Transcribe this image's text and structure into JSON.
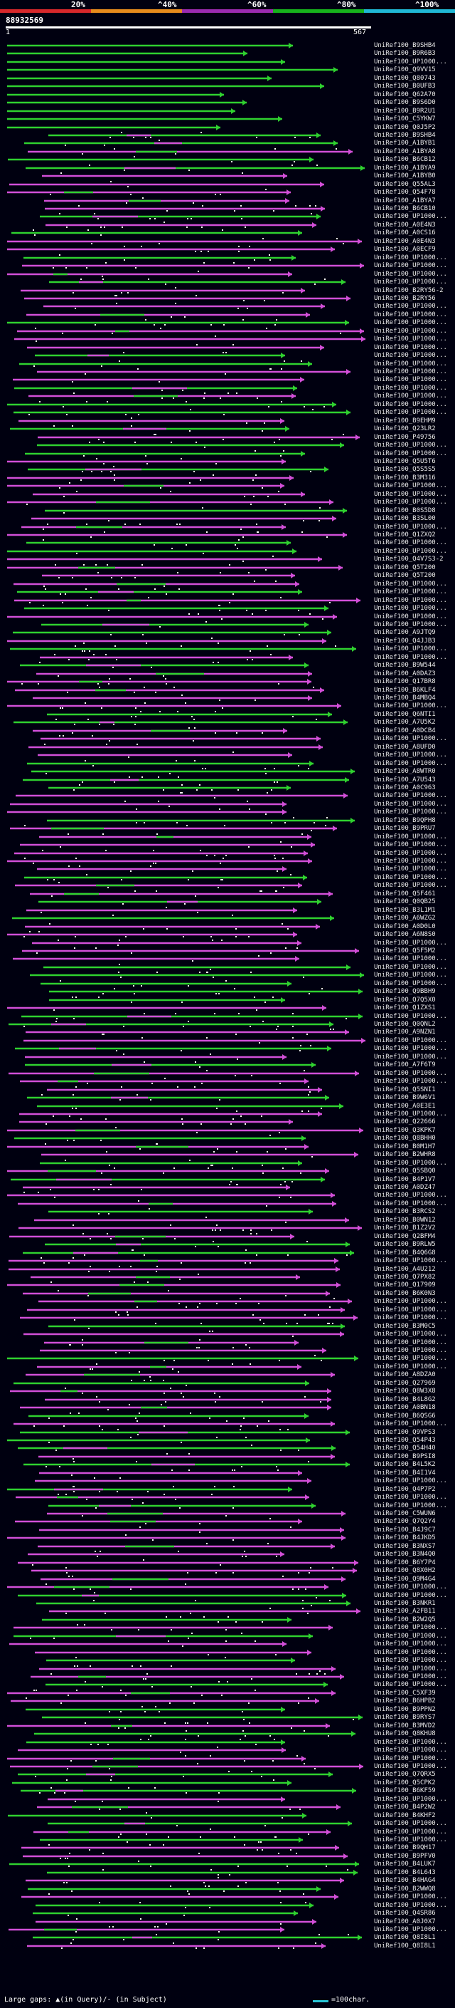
{
  "legend": {
    "labels": [
      "20%",
      "^40%",
      "^60%",
      "^80%",
      "^100%"
    ],
    "colors": [
      "#d8282b",
      "#e88c1c",
      "#9b2bb0",
      "#17b31c",
      "#20b8d6"
    ]
  },
  "query": {
    "id": "88932569",
    "start": "1",
    "end": "567"
  },
  "footer": {
    "gap_text": "Large gaps: ▲(in Query)/- (in Subject)",
    "scale_text": "=100char."
  },
  "colors": {
    "identity_high": "#2fd12f",
    "identity_mid": "#d24fd8",
    "gap": "#c8c8c8",
    "scale": "#29c5d6"
  },
  "hits": [
    "UniRef100_B9SHB4",
    "UniRef100_B9R6B3",
    "UniRef100_UP1000...",
    "UniRef100_Q9VV15",
    "UniRef100_Q80743",
    "UniRef100_B0UFB3",
    "UniRef100_Q62A70",
    "UniRef100_B9S6D0",
    "UniRef100_B9R2U1",
    "UniRef100_C5YKW7",
    "UniRef100_Q0J5P2",
    "UniRef100_B9SHB4",
    "UniRef100_A1BYB1",
    "UniRef100_A1BYA8",
    "UniRef100_B6CB12",
    "UniRef100_A1BYA9",
    "UniRef100_A1BYB0",
    "UniRef100_Q55AL3",
    "UniRef100_Q54F78",
    "UniRef100_A1BYA7",
    "UniRef100_B6CB10",
    "UniRef100_UP1000...",
    "UniRef100_A0E4N3",
    "UniRef100_A0CS16",
    "UniRef100_A0E4N3",
    "UniRef100_A0ECF9",
    "UniRef100_UP1000...",
    "UniRef100_UP1000...",
    "UniRef100_UP1000...",
    "UniRef100_UP1000...",
    "UniRef100_B2RY56-2",
    "UniRef100_B2RY56",
    "UniRef100_UP1000...",
    "UniRef100_UP1000...",
    "UniRef100_UP1000...",
    "UniRef100_UP1000...",
    "UniRef100_UP1000...",
    "UniRef100_UP1000...",
    "UniRef100_UP1000...",
    "UniRef100_UP1000...",
    "UniRef100_UP1000...",
    "UniRef100_UP1000...",
    "UniRef100_UP1000...",
    "UniRef100_UP1000...",
    "UniRef100_UP1000...",
    "UniRef100_UP1000...",
    "UniRef100_B9EHM9",
    "UniRef100_Q23LR2",
    "UniRef100_P49756",
    "UniRef100_UP1000...",
    "UniRef100_UP1000...",
    "UniRef100_Q5U5T6",
    "UniRef100_Q5S5S5",
    "UniRef100_B3M316",
    "UniRef100_UP1000...",
    "UniRef100_UP1000...",
    "UniRef100_UP1000...",
    "UniRef100_B0S5D8",
    "UniRef100_B3SL00",
    "UniRef100_UP1000...",
    "UniRef100_Q1ZXQ2",
    "UniRef100_UP1000...",
    "UniRef100_UP1000...",
    "UniRef100_Q4V7S3-2",
    "UniRef100_Q5T200",
    "UniRef100_Q5T200",
    "UniRef100_UP1000...",
    "UniRef100_UP1000...",
    "UniRef100_UP1000...",
    "UniRef100_UP1000...",
    "UniRef100_UP1000...",
    "UniRef100_UP1000...",
    "UniRef100_A9JTQ9",
    "UniRef100_Q4JJB3",
    "UniRef100_UP1000...",
    "UniRef100_UP1000...",
    "UniRef100_B9W544",
    "UniRef100_A0DAZ3",
    "UniRef100_Q17BR8",
    "UniRef100_B6KLF4",
    "UniRef100_B4MBQ4",
    "UniRef100_UP1000...",
    "UniRef100_Q6NTI1",
    "UniRef100_A7U5K2",
    "UniRef100_A0DCB4",
    "UniRef100_UP1000...",
    "UniRef100_A8UFD0",
    "UniRef100_UP1000...",
    "UniRef100_UP1000...",
    "UniRef100_A8WTR0",
    "UniRef100_A7U543",
    "UniRef100_A0C963",
    "UniRef100_UP1000...",
    "UniRef100_UP1000...",
    "UniRef100_UP1000...",
    "UniRef100_B9QPH8",
    "UniRef100_B9PRU7",
    "UniRef100_UP1000...",
    "UniRef100_UP1000...",
    "UniRef100_UP1000...",
    "UniRef100_UP1000...",
    "UniRef100_UP1000...",
    "UniRef100_UP1000...",
    "UniRef100_UP1000...",
    "UniRef100_Q5F461",
    "UniRef100_Q0QB25",
    "UniRef100_B3L1M1",
    "UniRef100_A6WZG2",
    "UniRef100_A0D0L0",
    "UniRef100_A6N8S0",
    "UniRef100_UP1000...",
    "UniRef100_Q5F5M2",
    "UniRef100_UP1000...",
    "UniRef100_UP1000...",
    "UniRef100_UP1000...",
    "UniRef100_UP1000...",
    "UniRef100_Q9BBH9",
    "UniRef100_Q7Q5X0",
    "UniRef100_Q1ZXS1",
    "UniRef100_UP1000...",
    "UniRef100_Q0QNL2",
    "UniRef100_A9NZN1",
    "UniRef100_UP1000...",
    "UniRef100_UP1000...",
    "UniRef100_UP1000...",
    "UniRef100_A7F6T9",
    "UniRef100_UP1000...",
    "UniRef100_UP1000...",
    "UniRef100_Q5SNI1",
    "UniRef100_B9W6V1",
    "UniRef100_A0E3E1",
    "UniRef100_UP1000...",
    "UniRef100_Q22666",
    "UniRef100_Q3KPK7",
    "UniRef100_Q8BHH0",
    "UniRef100_B0M1H7",
    "UniRef100_B2WHR8",
    "UniRef100_UP1000...",
    "UniRef100_Q5SBQ0",
    "UniRef100_B4P1V7",
    "UniRef100_A0DZ47",
    "UniRef100_UP1000...",
    "UniRef100_UP1000...",
    "UniRef100_B3RCS2",
    "UniRef100_B0WN12",
    "UniRef100_B1Z2V2",
    "UniRef100_Q2BFM4",
    "UniRef100_B9RLW5",
    "UniRef100_B4Q6G8",
    "UniRef100_UP1000...",
    "UniRef100_A4U212",
    "UniRef100_Q7PX82",
    "UniRef100_Q17909",
    "UniRef100_B6K0N3",
    "UniRef100_UP1000...",
    "UniRef100_UP1000...",
    "UniRef100_UP1000...",
    "UniRef100_B3M0C5",
    "UniRef100_UP1000...",
    "UniRef100_UP1000...",
    "UniRef100_UP1000...",
    "UniRef100_UP1000...",
    "UniRef100_UP1000...",
    "UniRef100_A8DZA0",
    "UniRef100_Q27969",
    "UniRef100_Q8W3X8",
    "UniRef100_B4L8G2",
    "UniRef100_A0BN18",
    "UniRef100_B6QSG6",
    "UniRef100_UP1000...",
    "UniRef100_Q9VPS3",
    "UniRef100_Q54P43",
    "UniRef100_Q54H40",
    "UniRef100_B9PSI8",
    "UniRef100_B4L5K2",
    "UniRef100_B4I1V4",
    "UniRef100_UP1000...",
    "UniRef100_Q4P7P2",
    "UniRef100_UP1000...",
    "UniRef100_UP1000...",
    "UniRef100_C5WUN6",
    "UniRef100_Q7Q2Y4",
    "UniRef100_B4J9C7",
    "UniRef100_B4JKD5",
    "UniRef100_B3NXS7",
    "UniRef100_B3N4Q0",
    "UniRef100_B6Y7P4",
    "UniRef100_Q8X0H2",
    "UniRef100_Q9M4G4",
    "UniRef100_UP1000...",
    "UniRef100_UP1000...",
    "UniRef100_B3NKR1",
    "UniRef100_A2FB11",
    "UniRef100_B2W2Q5",
    "UniRef100_UP1000...",
    "UniRef100_UP1000...",
    "UniRef100_UP1000...",
    "UniRef100_UP1000...",
    "UniRef100_UP1000...",
    "UniRef100_UP1000...",
    "UniRef100_UP1000...",
    "UniRef100_UP1000...",
    "UniRef100_C5XF39",
    "UniRef100_B6HPB2",
    "UniRef100_B9PPN2",
    "UniRef100_B9RYS7",
    "UniRef100_B3MVD2",
    "UniRef100_Q8KHU8",
    "UniRef100_UP1000...",
    "UniRef100_UP1000...",
    "UniRef100_UP1000...",
    "UniRef100_UP1000...",
    "UniRef100_Q7QRX5",
    "UniRef100_Q5CPK2",
    "UniRef100_B6KF59",
    "UniRef100_UP1000...",
    "UniRef100_B4P2W2",
    "UniRef100_B4KHF2",
    "UniRef100_UP1000...",
    "UniRef100_UP1000...",
    "UniRef100_UP1000...",
    "UniRef100_B9QH17",
    "UniRef100_B9PFV0",
    "UniRef100_B4LUK7",
    "UniRef100_B4L643",
    "UniRef100_B4HAG4",
    "UniRef100_B2WWQ8",
    "UniRef100_UP1000...",
    "UniRef100_UP1000...",
    "UniRef100_Q4SR86",
    "UniRef100_A0J0X7",
    "UniRef100_UP1000...",
    "UniRef100_Q8I8L1",
    "UniRef100_Q8I8L1"
  ]
}
